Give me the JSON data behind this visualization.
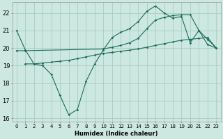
{
  "xlabel": "Humidex (Indice chaleur)",
  "bg_color": "#cce8e0",
  "grid_color": "#aaccc4",
  "line_color": "#1a6b5a",
  "xlim": [
    -0.5,
    23.5
  ],
  "ylim": [
    15.8,
    22.6
  ],
  "yticks": [
    16,
    17,
    18,
    19,
    20,
    21,
    22
  ],
  "xticks": [
    0,
    1,
    2,
    3,
    4,
    5,
    6,
    7,
    8,
    9,
    10,
    11,
    12,
    13,
    14,
    15,
    16,
    17,
    18,
    19,
    20,
    21,
    22,
    23
  ],
  "curve1_x": [
    0,
    1,
    2,
    3,
    4,
    5,
    6,
    7,
    8,
    9,
    10,
    11,
    12,
    13,
    14,
    15,
    16,
    17,
    18,
    19,
    20,
    21,
    22,
    23
  ],
  "curve1_y": [
    21.0,
    19.9,
    19.1,
    19.0,
    18.5,
    17.3,
    16.2,
    16.5,
    18.1,
    19.1,
    19.9,
    20.6,
    20.9,
    21.1,
    21.5,
    22.1,
    22.4,
    22.0,
    21.7,
    21.8,
    20.3,
    21.0,
    20.2,
    20.0
  ],
  "curve2_x": [
    0,
    1,
    10,
    11,
    12,
    13,
    14,
    15,
    16,
    17,
    18,
    19,
    20,
    21,
    22,
    23
  ],
  "curve2_y": [
    19.85,
    19.85,
    19.95,
    20.05,
    20.15,
    20.3,
    20.55,
    21.1,
    21.6,
    21.75,
    21.85,
    21.9,
    21.9,
    21.0,
    20.5,
    20.0
  ],
  "curve3_x": [
    1,
    2,
    3,
    4,
    5,
    6,
    7,
    8,
    9,
    10,
    11,
    12,
    13,
    14,
    15,
    16,
    17,
    18,
    19,
    20,
    21,
    22,
    23
  ],
  "curve3_y": [
    19.1,
    19.1,
    19.15,
    19.2,
    19.25,
    19.3,
    19.4,
    19.5,
    19.6,
    19.7,
    19.75,
    19.82,
    19.88,
    19.95,
    20.05,
    20.15,
    20.25,
    20.35,
    20.45,
    20.5,
    20.55,
    20.6,
    20.0
  ]
}
